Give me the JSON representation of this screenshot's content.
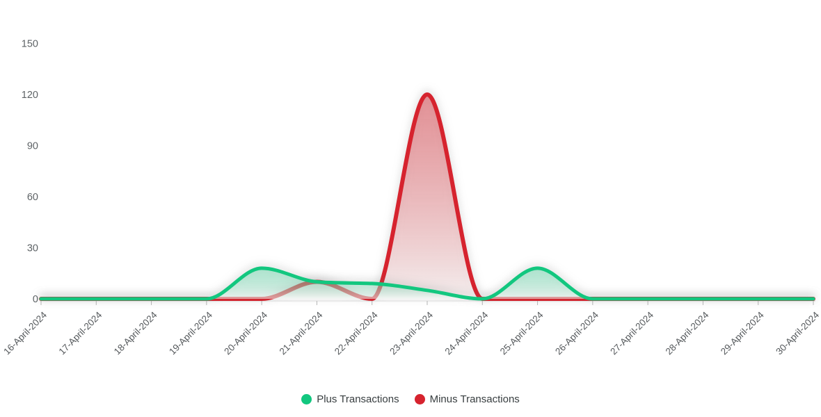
{
  "chart_data": {
    "type": "area",
    "curve": "smooth",
    "grid": false,
    "legend_position": "bottom",
    "categories": [
      "16-April-2024",
      "17-April-2024",
      "18-April-2024",
      "19-April-2024",
      "20-April-2024",
      "21-April-2024",
      "22-April-2024",
      "23-April-2024",
      "24-April-2024",
      "25-April-2024",
      "26-April-2024",
      "27-April-2024",
      "28-April-2024",
      "29-April-2024",
      "30-April-2024"
    ],
    "series": [
      {
        "name": "Plus Transactions",
        "color": "#12C77F",
        "values": [
          0,
          0,
          0,
          0,
          18,
          10,
          9,
          5,
          0,
          18,
          0,
          0,
          0,
          0,
          0
        ]
      },
      {
        "name": "Minus Transactions",
        "color": "#D6232E",
        "values": [
          0,
          0,
          0,
          0,
          0,
          10,
          0,
          120,
          0,
          0,
          0,
          0,
          0,
          0,
          0
        ]
      }
    ],
    "yticks": [
      0,
      30,
      60,
      90,
      120,
      150
    ],
    "ylim": [
      0,
      150
    ],
    "colors": {
      "axis_label": "#5e6366",
      "x_label": "#55595c",
      "legend_text": "#373d3f",
      "axis_line": "#e6e6e6",
      "tick_mark": "#b8b8b8"
    }
  }
}
